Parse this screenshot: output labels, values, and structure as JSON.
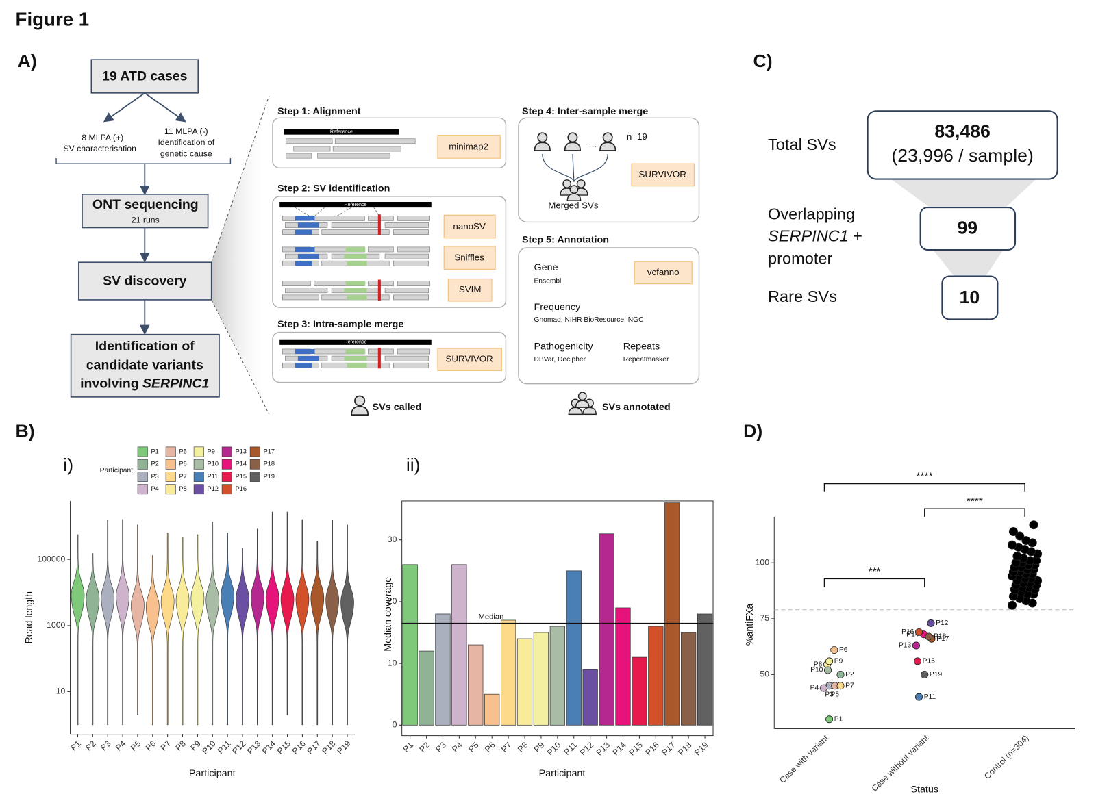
{
  "figure": {
    "title": "Figure 1",
    "panels": [
      "A)",
      "B)",
      "C)",
      "D)"
    ]
  },
  "flowchart": {
    "start": "19 ATD cases",
    "left": [
      "8 MLPA (+)",
      "SV characterisation"
    ],
    "right": [
      "11 MLPA (-)",
      "Identification of",
      "genetic cause"
    ],
    "sequencing": "ONT sequencing",
    "runs": "21 runs",
    "discovery": "SV discovery",
    "result": [
      "Identification of",
      "candidate variants",
      "involving ",
      "SERPINC1"
    ]
  },
  "pipeline": {
    "reference": "Reference",
    "step1": {
      "title": "Step 1: Alignment",
      "tool": "minimap2"
    },
    "step2": {
      "title": "Step 2: SV identification",
      "tools": [
        "nanoSV",
        "Sniffles",
        "SVIM"
      ]
    },
    "step3": {
      "title": "Step 3: Intra-sample merge",
      "tool": "SURVIVOR"
    },
    "step4": {
      "title": "Step 4: Inter-sample merge",
      "count": "n=19",
      "ellipsis": "...",
      "tool": "SURVIVOR",
      "output": "Merged SVs"
    },
    "step5": {
      "title": "Step 5: Annotation",
      "tool": "vcfanno",
      "fields": [
        {
          "name": "Gene",
          "source": "Ensembl"
        },
        {
          "name": "Frequency",
          "source": "Gnomad, NIHR BioResource, NGC"
        },
        {
          "name": "Pathogenicity",
          "source": "DBVar, Decipher"
        },
        {
          "name": "Repeats",
          "source": "Repeatmasker"
        }
      ]
    },
    "legend": {
      "called": "SVs called",
      "annotated": "SVs annotated"
    }
  },
  "funnel": {
    "total": {
      "label": "Total SVs",
      "count": "83,486",
      "detail": "(23,996 / sample)"
    },
    "overlapping": {
      "label": [
        "Overlapping",
        "SERPINC1",
        "+",
        "promoter"
      ],
      "count": "99"
    },
    "rare": {
      "label": "Rare SVs",
      "count": "10"
    }
  },
  "chart_data": [
    {
      "type": "violin",
      "label": "i)",
      "xlabel": "Participant",
      "ylabel": "Read length",
      "legend_title": "Participant",
      "categories": [
        "P1",
        "P2",
        "P3",
        "P4",
        "P5",
        "P6",
        "P7",
        "P8",
        "P9",
        "P10",
        "P11",
        "P12",
        "P13",
        "P14",
        "P15",
        "P16",
        "P17",
        "P18",
        "P19"
      ],
      "colors": [
        "#7ec97a",
        "#8fb394",
        "#aab0bd",
        "#cdb3cc",
        "#e6b5a3",
        "#f7c08c",
        "#fdd98a",
        "#f8ec9a",
        "#f3f0a0",
        "#a8bca6",
        "#4a7fb5",
        "#6a4fa3",
        "#b5288f",
        "#e6137a",
        "#e8194d",
        "#d2502a",
        "#a8582a",
        "#8a6048",
        "#606060"
      ],
      "max": [
        560000,
        150000,
        1500000,
        1600000,
        1100000,
        130000,
        630000,
        470000,
        560000,
        1350000,
        630000,
        220000,
        830000,
        2700000,
        2700000,
        1600000,
        350000,
        1500000,
        1100000
      ],
      "median": [
        9000,
        7000,
        7500,
        8500,
        4500,
        4000,
        6000,
        6500,
        7500,
        6500,
        9000,
        7000,
        8000,
        7500,
        7000,
        7000,
        7500,
        6500,
        5500
      ],
      "min": [
        1,
        1,
        1,
        1,
        2,
        1,
        1,
        1,
        1,
        1,
        1,
        1,
        1,
        1,
        2,
        1,
        1,
        1,
        1
      ],
      "yscale": "log",
      "ylim": [
        0.52,
        5800000
      ],
      "yticks": [
        10,
        1000,
        100000
      ]
    },
    {
      "type": "bar",
      "label": "ii)",
      "xlabel": "Participant",
      "ylabel": "Median coverage",
      "categories": [
        "P1",
        "P2",
        "P3",
        "P4",
        "P5",
        "P6",
        "P7",
        "P8",
        "P9",
        "P10",
        "P11",
        "P12",
        "P13",
        "P14",
        "P15",
        "P16",
        "P17",
        "P18",
        "P19"
      ],
      "values": [
        26,
        12,
        18,
        26,
        13,
        5,
        17,
        14,
        15,
        16,
        25,
        9,
        31,
        19,
        11,
        16,
        36,
        15,
        18
      ],
      "colors": [
        "#7ec97a",
        "#8fb394",
        "#aab0bd",
        "#cdb3cc",
        "#e6b5a3",
        "#f7c08c",
        "#fdd98a",
        "#f8ec9a",
        "#f3f0a0",
        "#a8bca6",
        "#4a7fb5",
        "#6a4fa3",
        "#b5288f",
        "#e6137a",
        "#e8194d",
        "#d2502a",
        "#a8582a",
        "#8a6048",
        "#606060"
      ],
      "hline": {
        "label": "Median",
        "value": 16.5
      },
      "ylim": [
        -1.7,
        36.3
      ],
      "yticks": [
        0,
        10,
        20,
        30
      ]
    },
    {
      "type": "strip",
      "xlabel": "Status",
      "ylabel": "%antiFXa",
      "categories": [
        "Case with variant",
        "Case without variant",
        "Control (n=304)"
      ],
      "groups": [
        {
          "labels": [
            "P1",
            "P2",
            "P3",
            "P4",
            "P5",
            "P6",
            "P7",
            "P8",
            "P9",
            "P10"
          ],
          "values": [
            30,
            50,
            45,
            44,
            45,
            61,
            45,
            54.5,
            56,
            52
          ],
          "colors": [
            "#7ec97a",
            "#8fb394",
            "#aab0bd",
            "#cdb3cc",
            "#e6b5a3",
            "#f7c08c",
            "#fdd98a",
            "#f8ec9a",
            "#f3f0a0",
            "#a8bca6"
          ]
        },
        {
          "labels": [
            "P11",
            "P12",
            "P13",
            "P14",
            "P15",
            "P16",
            "P17",
            "P18",
            "P19"
          ],
          "values": [
            40,
            73,
            63,
            68,
            56,
            69,
            66,
            67,
            50
          ],
          "colors": [
            "#4a7fb5",
            "#6a4fa3",
            "#b5288f",
            "#e6137a",
            "#e8194d",
            "#d2502a",
            "#a8582a",
            "#8a6048",
            "#606060"
          ]
        },
        {
          "color": "#000000",
          "values": [
            81,
            82,
            83,
            84,
            85,
            86,
            86,
            87,
            88,
            88,
            89,
            89,
            90,
            90,
            91,
            91,
            92,
            92,
            93,
            93,
            94,
            94,
            95,
            95,
            96,
            96,
            97,
            97,
            98,
            98,
            99,
            99,
            100,
            100,
            101,
            101,
            102,
            103,
            104,
            105,
            106,
            107,
            108,
            109,
            110,
            112,
            114,
            117
          ]
        }
      ],
      "significance": [
        "****",
        "****",
        "***"
      ],
      "hline": 79,
      "ylim": [
        25.8,
        120.5
      ],
      "yticks": [
        50,
        75,
        100
      ]
    }
  ]
}
